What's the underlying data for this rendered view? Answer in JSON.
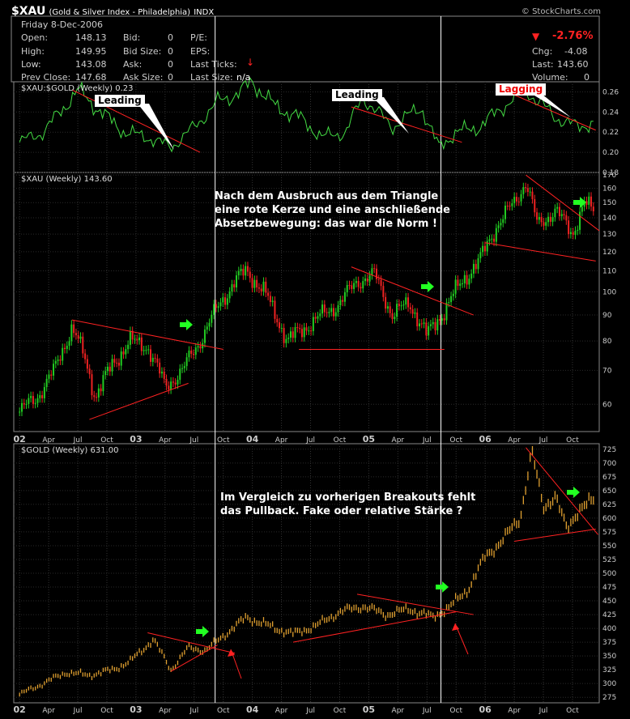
{
  "header": {
    "symbol": "$XAU",
    "description": "(Gold & Silver Index - Philadelphia)",
    "exchange": "INDX",
    "copyright": "© StockCharts.com"
  },
  "quote": {
    "date": "Friday 8-Dec-2006",
    "open_label": "Open:",
    "open": "148.13",
    "high_label": "High:",
    "high": "149.95",
    "low_label": "Low:",
    "low": "143.08",
    "prev_label": "Prev Close:",
    "prev": "147.68",
    "bid_label": "Bid:",
    "bid": "0",
    "bidsize_label": "Bid Size:",
    "bidsize": "0",
    "ask_label": "Ask:",
    "ask": "0",
    "asksize_label": "Ask Size:",
    "asksize": "0",
    "pe_label": "P/E:",
    "eps_label": "EPS:",
    "ticks_label": "Last Ticks:",
    "lastsize_label": "Last Size:",
    "lastsize": "n/a",
    "pct": "-2.76%",
    "chg_label": "Chg:",
    "chg": "-4.08",
    "last_label": "Last:",
    "last": "143.60",
    "vol_label": "Volume:",
    "vol": "0"
  },
  "annotations": {
    "leading1": "Leading",
    "leading2": "Leading",
    "lagging": "Lagging",
    "note_xau": [
      "Nach dem Ausbruch aus dem Triangle",
      "eine rote Kerze und eine anschließende",
      "Absetzbewegung: das war die Norm !"
    ],
    "note_gold": [
      "Im Vergleich zu vorherigen Breakouts fehlt",
      "das Pullback. Fake oder relative Stärke ?"
    ]
  },
  "colors": {
    "ratio_line": "#44dd44",
    "candle_up": "#22cc22",
    "candle_down": "#ee2222",
    "gold_bar": "#e0a030",
    "trendline": "#ff2222",
    "arrow": "#22ff22"
  },
  "chart_data": [
    {
      "type": "line",
      "legend": "$XAU:$GOLD (Weekly) 0.23",
      "ylim": [
        0.18,
        0.27
      ],
      "yticks": [
        0.18,
        0.2,
        0.22,
        0.24,
        0.26
      ],
      "x": [
        2002.0,
        2002.2,
        2002.35,
        2002.5,
        2002.7,
        2002.9,
        2003.1,
        2003.3,
        2003.5,
        2003.7,
        2003.9,
        2004.0,
        2004.2,
        2004.4,
        2004.6,
        2004.8,
        2004.95,
        2005.2,
        2005.45,
        2005.6,
        2005.75,
        2005.95,
        2006.15,
        2006.35,
        2006.6,
        2006.8,
        2006.93
      ],
      "values": [
        0.21,
        0.22,
        0.24,
        0.262,
        0.24,
        0.22,
        0.215,
        0.205,
        0.225,
        0.25,
        0.26,
        0.27,
        0.245,
        0.235,
        0.215,
        0.22,
        0.255,
        0.225,
        0.245,
        0.205,
        0.22,
        0.225,
        0.245,
        0.262,
        0.235,
        0.225,
        0.23
      ]
    },
    {
      "type": "candlestick",
      "legend": "$XAU (Weekly) 143.60",
      "ylim": [
        53,
        172
      ],
      "yticks": [
        60,
        70,
        80,
        90,
        100,
        110,
        120,
        130,
        140,
        150,
        160,
        170
      ],
      "x": [
        2002.0,
        2002.15,
        2002.3,
        2002.45,
        2002.55,
        2002.65,
        2002.8,
        2002.95,
        2003.1,
        2003.25,
        2003.4,
        2003.55,
        2003.7,
        2003.85,
        2003.95,
        2004.1,
        2004.3,
        2004.45,
        2004.6,
        2004.75,
        2004.9,
        2005.05,
        2005.2,
        2005.35,
        2005.5,
        2005.65,
        2005.8,
        2005.95,
        2006.1,
        2006.25,
        2006.35,
        2006.45,
        2006.6,
        2006.75,
        2006.85,
        2006.93
      ],
      "values": [
        58,
        62,
        70,
        85,
        75,
        62,
        72,
        80,
        78,
        65,
        70,
        80,
        93,
        105,
        110,
        100,
        80,
        85,
        90,
        95,
        105,
        108,
        90,
        95,
        82,
        92,
        105,
        115,
        135,
        150,
        165,
        135,
        145,
        130,
        150,
        143.6
      ]
    },
    {
      "type": "bar",
      "legend": "$GOLD (Weekly) 631.00",
      "ylim": [
        265,
        735
      ],
      "yticks": [
        275,
        300,
        325,
        350,
        375,
        400,
        425,
        450,
        475,
        500,
        525,
        550,
        575,
        600,
        625,
        650,
        675,
        700,
        725
      ],
      "x": [
        2002.0,
        2002.2,
        2002.4,
        2002.6,
        2002.8,
        2002.95,
        2003.15,
        2003.3,
        2003.45,
        2003.6,
        2003.8,
        2003.95,
        2004.2,
        2004.35,
        2004.55,
        2004.75,
        2004.95,
        2005.15,
        2005.35,
        2005.55,
        2005.7,
        2005.85,
        2006.0,
        2006.15,
        2006.3,
        2006.4,
        2006.5,
        2006.6,
        2006.7,
        2006.8,
        2006.93
      ],
      "values": [
        280,
        300,
        320,
        315,
        325,
        340,
        380,
        325,
        365,
        360,
        395,
        420,
        400,
        390,
        405,
        430,
        440,
        425,
        435,
        420,
        440,
        470,
        530,
        560,
        600,
        720,
        620,
        640,
        580,
        615,
        631
      ]
    }
  ],
  "x_axis": {
    "labels": [
      "02",
      "Apr",
      "Jul",
      "Oct",
      "03",
      "Apr",
      "Jul",
      "Oct",
      "04",
      "Apr",
      "Jul",
      "Oct",
      "05",
      "Apr",
      "Jul",
      "Oct",
      "06",
      "Apr",
      "Jul",
      "Oct"
    ],
    "x": [
      2002.0,
      2002.25,
      2002.5,
      2002.75,
      2003.0,
      2003.25,
      2003.5,
      2003.75,
      2004.0,
      2004.25,
      2004.5,
      2004.75,
      2005.0,
      2005.25,
      2005.5,
      2005.75,
      2006.0,
      2006.25,
      2006.5,
      2006.75
    ],
    "major": [
      "02",
      "03",
      "04",
      "05",
      "06"
    ],
    "vlines": [
      2003.68,
      2005.62
    ]
  }
}
